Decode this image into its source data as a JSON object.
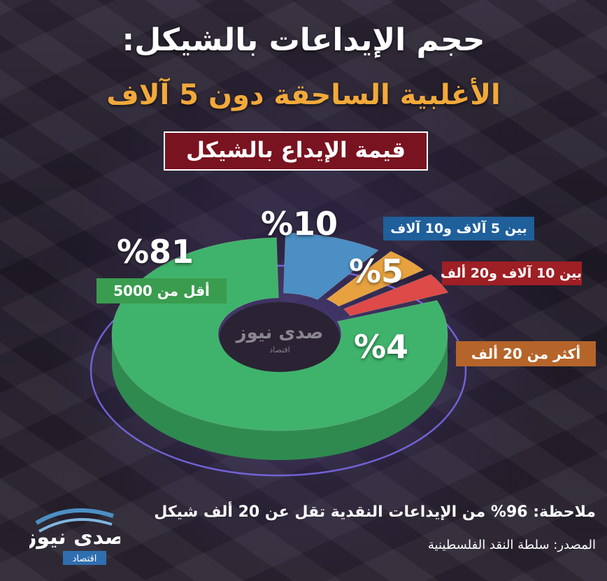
{
  "title": "حجم الإيداعات بالشيكل:",
  "subtitle": "الأغلبية الساحقة دون 5 آلاف",
  "value_box": "قيمة الإيداع بالشيكل",
  "chart_data": {
    "type": "pie",
    "categories": [
      "أقل من 5000",
      "بين 5 آلاف و10 آلاف",
      "بين 10 آلاف و20 ألف",
      "أكثر من 20 ألف"
    ],
    "values": [
      81,
      10,
      5,
      4
    ],
    "value_labels": [
      "%81",
      "%10",
      "%5",
      "%4"
    ],
    "colors": [
      "#3fb36b",
      "#4b8fc4",
      "#e7a23f",
      "#dd4a47"
    ],
    "category_label_colors": [
      "#3a9c4f",
      "#1f5f9a",
      "#9e1f24",
      "#b5652a"
    ]
  },
  "note": "ملاحظة: 96% من الإيداعات النقدية تقل عن 20 ألف شيكل",
  "source": "المصدر: سلطة النقد الفلسطينية",
  "logo": {
    "name": "صدى نيوز",
    "tag": "اقتصاد"
  },
  "watermark": {
    "name": "صدى نيوز",
    "tag": "اقتصاد"
  }
}
